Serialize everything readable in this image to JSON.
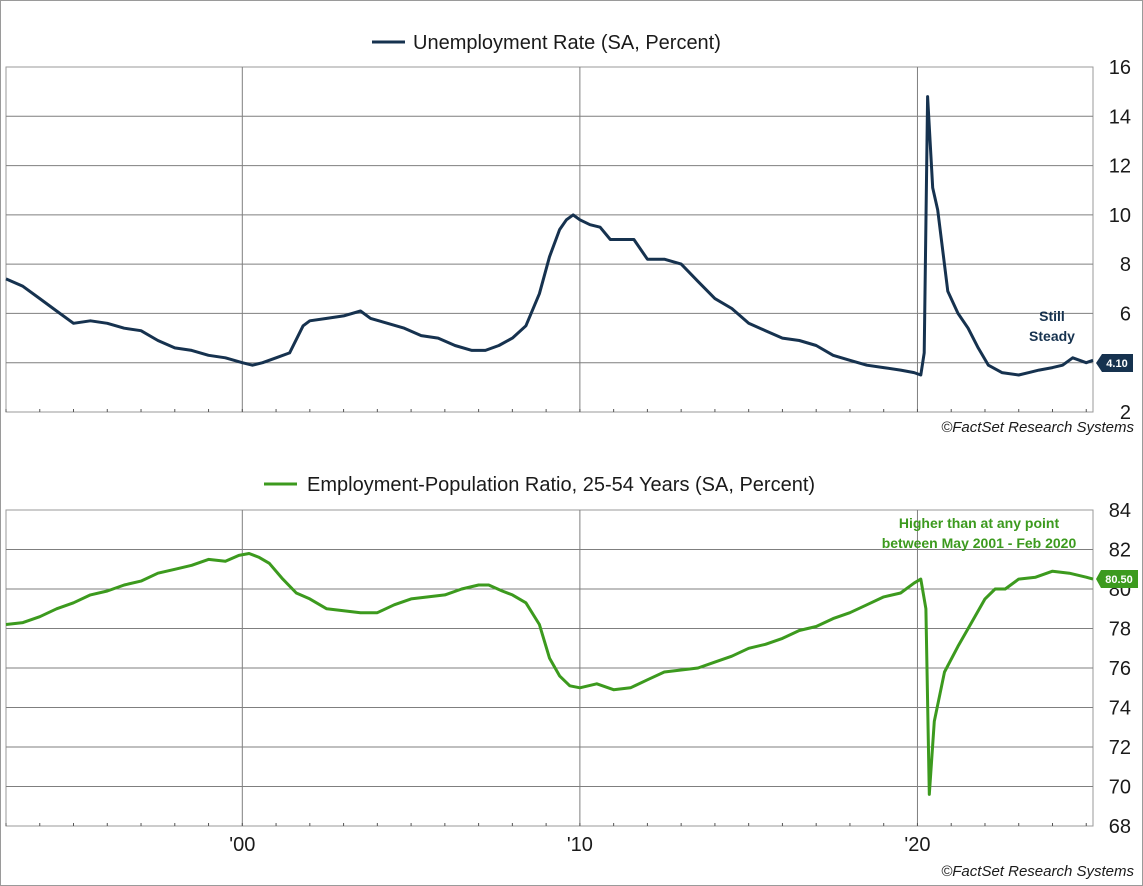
{
  "credit": "©FactSet Research Systems",
  "x_axis": {
    "tick_labels": [
      "'00",
      "'10",
      "'20"
    ],
    "tick_values": [
      2000,
      2010,
      2020
    ],
    "range": [
      1993,
      2025.2
    ]
  },
  "colors": {
    "unemployment": "#16324f",
    "epop": "#3c9a1e",
    "grid": "#7f7f7f",
    "axis_text": "#1a1a1a"
  },
  "chart_data": [
    {
      "id": "unemployment",
      "type": "line",
      "series": [
        {
          "name": "Unemployment Rate (SA, Percent)",
          "x": [
            1993.0,
            1993.5,
            1994.0,
            1994.5,
            1995.0,
            1995.5,
            1996.0,
            1996.5,
            1997.0,
            1997.5,
            1998.0,
            1998.5,
            1999.0,
            1999.5,
            2000.0,
            2000.3,
            2000.6,
            2001.0,
            2001.4,
            2001.8,
            2002.0,
            2002.5,
            2003.0,
            2003.5,
            2003.8,
            2004.3,
            2004.8,
            2005.3,
            2005.8,
            2006.3,
            2006.8,
            2007.2,
            2007.6,
            2008.0,
            2008.4,
            2008.8,
            2009.1,
            2009.4,
            2009.6,
            2009.8,
            2010.0,
            2010.3,
            2010.6,
            2010.9,
            2011.2,
            2011.6,
            2012.0,
            2012.5,
            2013.0,
            2013.5,
            2014.0,
            2014.5,
            2015.0,
            2015.5,
            2016.0,
            2016.5,
            2017.0,
            2017.5,
            2018.0,
            2018.5,
            2019.0,
            2019.5,
            2019.9,
            2020.1,
            2020.2,
            2020.3,
            2020.45,
            2020.6,
            2020.9,
            2021.2,
            2021.5,
            2021.8,
            2022.1,
            2022.5,
            2023.0,
            2023.3,
            2023.6,
            2024.0,
            2024.3,
            2024.6,
            2025.0,
            2025.2
          ],
          "values": [
            7.4,
            7.1,
            6.6,
            6.1,
            5.6,
            5.7,
            5.6,
            5.4,
            5.3,
            4.9,
            4.6,
            4.5,
            4.3,
            4.2,
            4.0,
            3.9,
            4.0,
            4.2,
            4.4,
            5.5,
            5.7,
            5.8,
            5.9,
            6.1,
            5.8,
            5.6,
            5.4,
            5.1,
            5.0,
            4.7,
            4.5,
            4.5,
            4.7,
            5.0,
            5.5,
            6.8,
            8.3,
            9.4,
            9.8,
            10.0,
            9.8,
            9.6,
            9.5,
            9.0,
            9.0,
            9.0,
            8.2,
            8.2,
            8.0,
            7.3,
            6.6,
            6.2,
            5.6,
            5.3,
            5.0,
            4.9,
            4.7,
            4.3,
            4.1,
            3.9,
            3.8,
            3.7,
            3.6,
            3.5,
            4.4,
            14.8,
            11.1,
            10.2,
            6.9,
            6.0,
            5.4,
            4.6,
            3.9,
            3.6,
            3.5,
            3.6,
            3.7,
            3.8,
            3.9,
            4.2,
            4.0,
            4.1
          ]
        }
      ],
      "ylim": [
        2,
        16
      ],
      "y_ticks": [
        2,
        4,
        6,
        8,
        10,
        12,
        14,
        16
      ],
      "end_label": "4.10",
      "annotation": [
        "Still",
        "Steady"
      ],
      "grid": true,
      "legend": "top-center"
    },
    {
      "id": "epop",
      "type": "line",
      "series": [
        {
          "name": "Employment-Population Ratio, 25-54 Years (SA, Percent)",
          "x": [
            1993.0,
            1993.5,
            1994.0,
            1994.5,
            1995.0,
            1995.5,
            1996.0,
            1996.5,
            1997.0,
            1997.5,
            1998.0,
            1998.5,
            1999.0,
            1999.5,
            1999.9,
            2000.2,
            2000.5,
            2000.8,
            2001.2,
            2001.6,
            2002.0,
            2002.5,
            2003.0,
            2003.5,
            2004.0,
            2004.5,
            2005.0,
            2005.5,
            2006.0,
            2006.5,
            2007.0,
            2007.3,
            2007.7,
            2008.0,
            2008.4,
            2008.8,
            2009.1,
            2009.4,
            2009.7,
            2010.0,
            2010.5,
            2011.0,
            2011.5,
            2012.0,
            2012.5,
            2013.0,
            2013.5,
            2014.0,
            2014.5,
            2015.0,
            2015.5,
            2016.0,
            2016.5,
            2017.0,
            2017.5,
            2018.0,
            2018.5,
            2019.0,
            2019.5,
            2019.9,
            2020.1,
            2020.25,
            2020.35,
            2020.5,
            2020.8,
            2021.2,
            2021.6,
            2022.0,
            2022.3,
            2022.6,
            2023.0,
            2023.5,
            2024.0,
            2024.5,
            2025.0,
            2025.2
          ],
          "values": [
            78.2,
            78.3,
            78.6,
            79.0,
            79.3,
            79.7,
            79.9,
            80.2,
            80.4,
            80.8,
            81.0,
            81.2,
            81.5,
            81.4,
            81.7,
            81.8,
            81.6,
            81.3,
            80.5,
            79.8,
            79.5,
            79.0,
            78.9,
            78.8,
            78.8,
            79.2,
            79.5,
            79.6,
            79.7,
            80.0,
            80.2,
            80.2,
            79.9,
            79.7,
            79.3,
            78.2,
            76.5,
            75.6,
            75.1,
            75.0,
            75.2,
            74.9,
            75.0,
            75.4,
            75.8,
            75.9,
            76.0,
            76.3,
            76.6,
            77.0,
            77.2,
            77.5,
            77.9,
            78.1,
            78.5,
            78.8,
            79.2,
            79.6,
            79.8,
            80.3,
            80.5,
            79.0,
            69.6,
            73.3,
            75.8,
            77.1,
            78.3,
            79.5,
            80.0,
            80.0,
            80.5,
            80.6,
            80.9,
            80.8,
            80.6,
            80.5
          ]
        }
      ],
      "ylim": [
        68,
        84
      ],
      "y_ticks": [
        68,
        70,
        72,
        74,
        76,
        78,
        80,
        82,
        84
      ],
      "end_label": "80.50",
      "annotation": [
        "Higher than at any point",
        "between May 2001 - Feb 2020"
      ],
      "grid": true,
      "legend": "top-center"
    }
  ]
}
